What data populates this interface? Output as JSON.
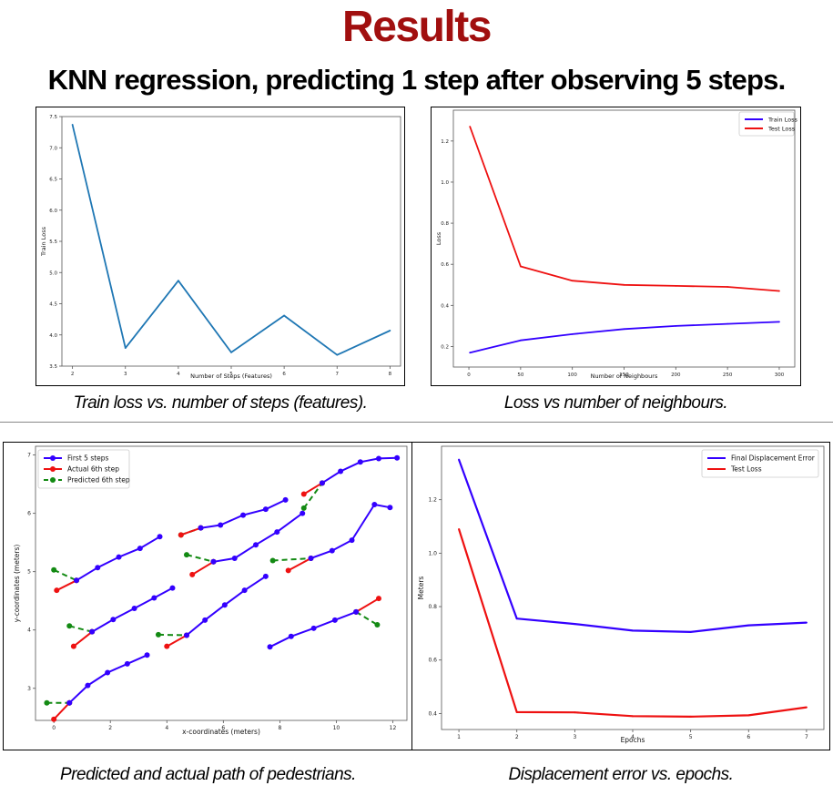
{
  "page": {
    "title": "Results",
    "subtitle": "KNN regression, predicting 1 step after observing 5 steps."
  },
  "captions": {
    "c1": "Train loss vs. number of steps (features).",
    "c2": "Loss vs number of neighbours.",
    "c3": "Predicted and actual path of pedestrians.",
    "c4": "Displacement error vs. epochs."
  },
  "chart_data": [
    {
      "type": "line",
      "xlabel": "Number of Steps (Features)",
      "ylabel": "Train Loss",
      "xlim": [
        1.8,
        8.2
      ],
      "ylim": [
        3.5,
        7.5
      ],
      "xticks": [
        2,
        3,
        4,
        5,
        6,
        7,
        8
      ],
      "yticks": [
        3.5,
        4.0,
        4.5,
        5.0,
        5.5,
        6.0,
        6.5,
        7.0,
        7.5
      ],
      "series": [
        {
          "color": "#1f77b4",
          "x": [
            2,
            3,
            4,
            5,
            6,
            7,
            8
          ],
          "y": [
            7.37,
            3.79,
            4.87,
            3.72,
            4.31,
            3.68,
            4.07
          ]
        }
      ]
    },
    {
      "type": "line",
      "xlabel": "Number of Neighbours",
      "ylabel": "Loss",
      "xlim": [
        -15,
        315
      ],
      "ylim": [
        0.1,
        1.35
      ],
      "xticks": [
        0,
        50,
        100,
        150,
        200,
        250,
        300
      ],
      "yticks": [
        0.2,
        0.4,
        0.6,
        0.8,
        1.0,
        1.2
      ],
      "legend": "top-right",
      "series": [
        {
          "name": "Train Loss",
          "color": "#3300ff",
          "x": [
            1,
            50,
            100,
            150,
            200,
            250,
            300
          ],
          "y": [
            0.17,
            0.23,
            0.26,
            0.285,
            0.3,
            0.31,
            0.32
          ]
        },
        {
          "name": "Test Loss",
          "color": "#ee1111",
          "x": [
            1,
            50,
            100,
            150,
            200,
            250,
            300
          ],
          "y": [
            1.27,
            0.59,
            0.52,
            0.5,
            0.495,
            0.49,
            0.47
          ]
        }
      ]
    },
    {
      "type": "line",
      "xlabel": "x-coordinates (meters)",
      "ylabel": "y-coordinates (meters)",
      "xlim": [
        -0.65,
        12.5
      ],
      "ylim": [
        2.45,
        7.15
      ],
      "xticks": [
        0,
        2,
        4,
        6,
        8,
        10,
        12
      ],
      "yticks": [
        3,
        4,
        5,
        6,
        7
      ],
      "legend": "top-left",
      "legend_entries": [
        {
          "name": "First 5 steps",
          "color": "#3300ff",
          "dashed": false
        },
        {
          "name": "Actual 6th step",
          "color": "#ee1111",
          "dashed": false
        },
        {
          "name": "Predicted 6th step",
          "color": "#138a13",
          "dashed": true
        }
      ],
      "trajectories": [
        {
          "first": [
            [
              0.55,
              2.75
            ],
            [
              1.2,
              3.05
            ],
            [
              1.9,
              3.27
            ],
            [
              2.6,
              3.42
            ],
            [
              3.3,
              3.57
            ]
          ],
          "actual": [
            [
              0.0,
              2.47
            ],
            [
              0.55,
              2.75
            ]
          ],
          "pred": [
            [
              -0.25,
              2.75
            ],
            [
              0.55,
              2.75
            ]
          ]
        },
        {
          "first": [
            [
              0.8,
              4.85
            ],
            [
              1.55,
              5.07
            ],
            [
              2.3,
              5.25
            ],
            [
              3.05,
              5.4
            ],
            [
              3.75,
              5.6
            ]
          ],
          "actual": [
            [
              0.1,
              4.68
            ],
            [
              0.8,
              4.85
            ]
          ],
          "pred": [
            [
              0.0,
              5.03
            ],
            [
              0.8,
              4.85
            ]
          ]
        },
        {
          "first": [
            [
              1.35,
              3.97
            ],
            [
              2.1,
              4.18
            ],
            [
              2.85,
              4.37
            ],
            [
              3.55,
              4.55
            ],
            [
              4.2,
              4.72
            ]
          ],
          "actual": [
            [
              0.7,
              3.72
            ],
            [
              1.35,
              3.97
            ]
          ],
          "pred": [
            [
              0.55,
              4.07
            ],
            [
              1.35,
              3.97
            ]
          ]
        },
        {
          "first": [
            [
              4.7,
              3.91
            ],
            [
              5.35,
              4.17
            ],
            [
              6.05,
              4.43
            ],
            [
              6.75,
              4.68
            ],
            [
              7.5,
              4.92
            ]
          ],
          "actual": [
            [
              4.0,
              3.72
            ],
            [
              4.7,
              3.91
            ]
          ],
          "pred": [
            [
              3.7,
              3.92
            ],
            [
              4.7,
              3.91
            ]
          ]
        },
        {
          "first": [
            [
              5.65,
              5.17
            ],
            [
              6.4,
              5.23
            ],
            [
              7.15,
              5.46
            ],
            [
              7.9,
              5.68
            ],
            [
              8.8,
              6.0
            ]
          ],
          "actual": [
            [
              4.9,
              4.95
            ],
            [
              5.65,
              5.17
            ]
          ],
          "pred": [
            [
              4.7,
              5.29
            ],
            [
              5.65,
              5.17
            ]
          ]
        },
        {
          "first": [
            [
              5.2,
              5.75
            ],
            [
              5.9,
              5.8
            ],
            [
              6.7,
              5.97
            ],
            [
              7.5,
              6.07
            ],
            [
              8.2,
              6.23
            ]
          ],
          "actual": [
            [
              4.5,
              5.63
            ],
            [
              5.2,
              5.75
            ]
          ],
          "pred": [
            [
              4.5,
              5.63
            ],
            [
              5.2,
              5.75
            ]
          ]
        },
        {
          "first": [
            [
              9.1,
              5.23
            ],
            [
              9.85,
              5.36
            ],
            [
              10.55,
              5.54
            ],
            [
              11.35,
              6.15
            ],
            [
              11.9,
              6.1
            ]
          ],
          "actual": [
            [
              8.3,
              5.02
            ],
            [
              9.1,
              5.23
            ]
          ],
          "pred": [
            [
              7.75,
              5.19
            ],
            [
              9.1,
              5.23
            ]
          ]
        },
        {
          "first": [
            [
              9.5,
              6.52
            ],
            [
              10.15,
              6.72
            ],
            [
              10.85,
              6.88
            ],
            [
              11.5,
              6.94
            ],
            [
              12.15,
              6.95
            ]
          ],
          "actual": [
            [
              8.85,
              6.33
            ],
            [
              9.5,
              6.52
            ]
          ],
          "pred": [
            [
              8.85,
              6.09
            ],
            [
              9.5,
              6.52
            ]
          ]
        },
        {
          "first": [
            [
              7.65,
              3.71
            ],
            [
              8.4,
              3.89
            ],
            [
              9.2,
              4.03
            ],
            [
              9.95,
              4.17
            ],
            [
              10.7,
              4.31
            ]
          ],
          "actual": [
            [
              10.7,
              4.31
            ],
            [
              11.5,
              4.54
            ]
          ],
          "pred": [
            [
              10.7,
              4.31
            ],
            [
              11.45,
              4.09
            ]
          ]
        }
      ]
    },
    {
      "type": "line",
      "xlabel": "Epochs",
      "ylabel": "Meters",
      "xlim": [
        0.7,
        7.3
      ],
      "ylim": [
        0.34,
        1.4
      ],
      "xticks": [
        1,
        2,
        3,
        4,
        5,
        6,
        7
      ],
      "yticks": [
        0.4,
        0.6,
        0.8,
        1.0,
        1.2
      ],
      "legend": "top-right",
      "series": [
        {
          "name": "Final Displacement Error",
          "color": "#3300ff",
          "x": [
            1,
            2,
            3,
            4,
            5,
            6,
            7
          ],
          "y": [
            1.35,
            0.755,
            0.735,
            0.71,
            0.705,
            0.73,
            0.74
          ]
        },
        {
          "name": "Test Loss",
          "color": "#ee1111",
          "x": [
            1,
            2,
            3,
            4,
            5,
            6,
            7
          ],
          "y": [
            1.09,
            0.405,
            0.404,
            0.39,
            0.388,
            0.393,
            0.423
          ]
        }
      ]
    }
  ]
}
